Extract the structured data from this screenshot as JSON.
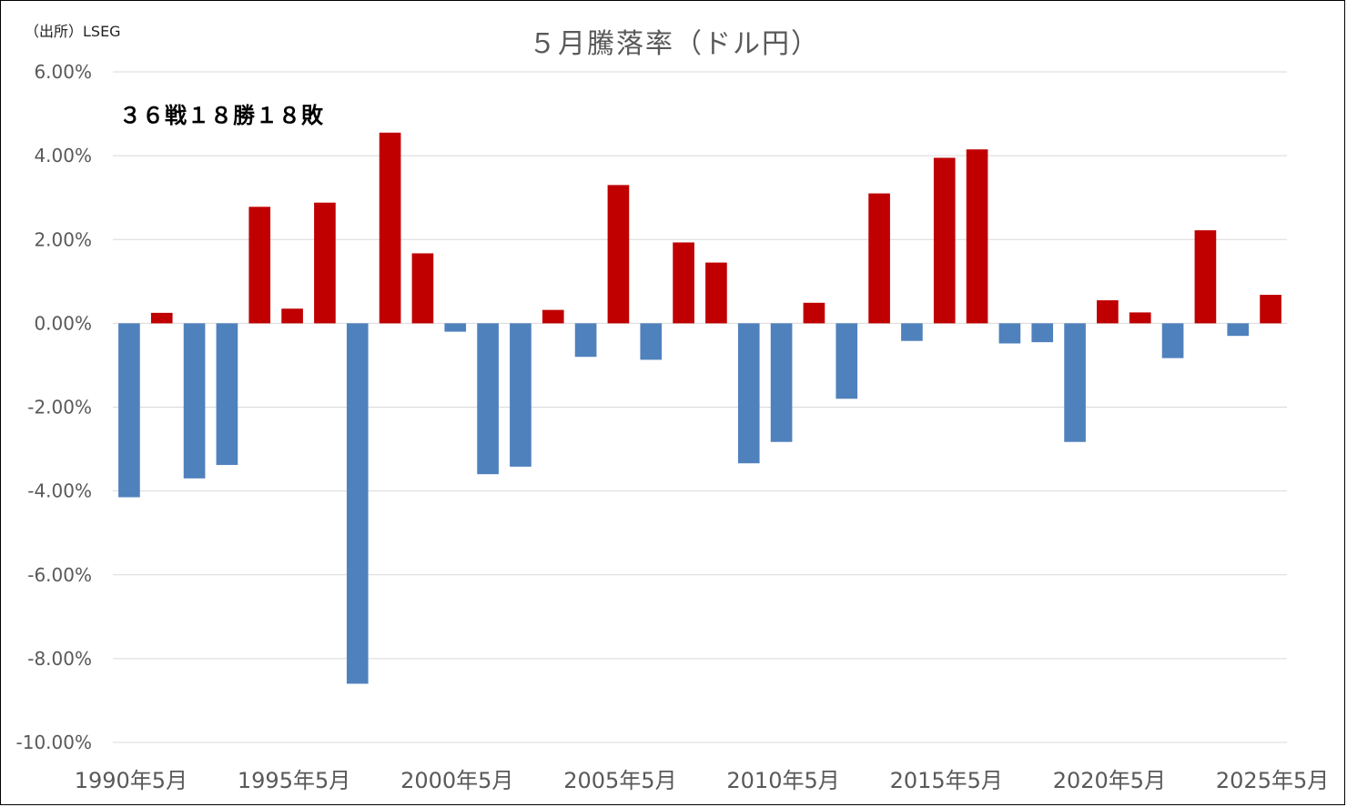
{
  "source_label": "（出所）LSEG",
  "title": "５月騰落率（ドル円）",
  "note": "３６戦１８勝１８敗",
  "chart_data": {
    "type": "bar",
    "title": "５月騰落率（ドル円）",
    "xlabel": "",
    "ylabel": "",
    "ylim": [
      -10,
      6
    ],
    "yticks": [
      6,
      4,
      2,
      0,
      -2,
      -4,
      -6,
      -8,
      -10
    ],
    "ytick_labels": [
      "6.00%",
      "4.00%",
      "2.00%",
      "0.00%",
      "-2.00%",
      "-4.00%",
      "-6.00%",
      "-8.00%",
      "-10.00%"
    ],
    "xtick_labels": [
      "1990年5月",
      "1995年5月",
      "2000年5月",
      "2005年5月",
      "2010年5月",
      "2015年5月",
      "2020年5月",
      "2025年5月"
    ],
    "grid": true,
    "positive_color": "#c00000",
    "negative_color": "#4f81bd",
    "categories": [
      "1990年5月",
      "1991年5月",
      "1992年5月",
      "1993年5月",
      "1994年5月",
      "1995年5月",
      "1996年5月",
      "1997年5月",
      "1998年5月",
      "1999年5月",
      "2000年5月",
      "2001年5月",
      "2002年5月",
      "2003年5月",
      "2004年5月",
      "2005年5月",
      "2006年5月",
      "2007年5月",
      "2008年5月",
      "2009年5月",
      "2010年5月",
      "2011年5月",
      "2012年5月",
      "2013年5月",
      "2014年5月",
      "2015年5月",
      "2016年5月",
      "2017年5月",
      "2018年5月",
      "2019年5月",
      "2020年5月",
      "2021年5月",
      "2022年5月",
      "2023年5月",
      "2024年5月",
      "2025年5月"
    ],
    "values": [
      -4.15,
      0.25,
      -3.7,
      -3.38,
      2.78,
      0.35,
      2.88,
      -8.6,
      4.55,
      1.67,
      -0.2,
      -3.6,
      -3.42,
      0.32,
      -0.8,
      3.3,
      -0.87,
      1.93,
      1.45,
      -3.34,
      -2.83,
      0.49,
      -1.8,
      3.1,
      -0.42,
      3.95,
      4.15,
      -0.48,
      -0.45,
      -2.83,
      0.55,
      0.26,
      -0.83,
      2.22,
      -0.3,
      0.68
    ]
  }
}
